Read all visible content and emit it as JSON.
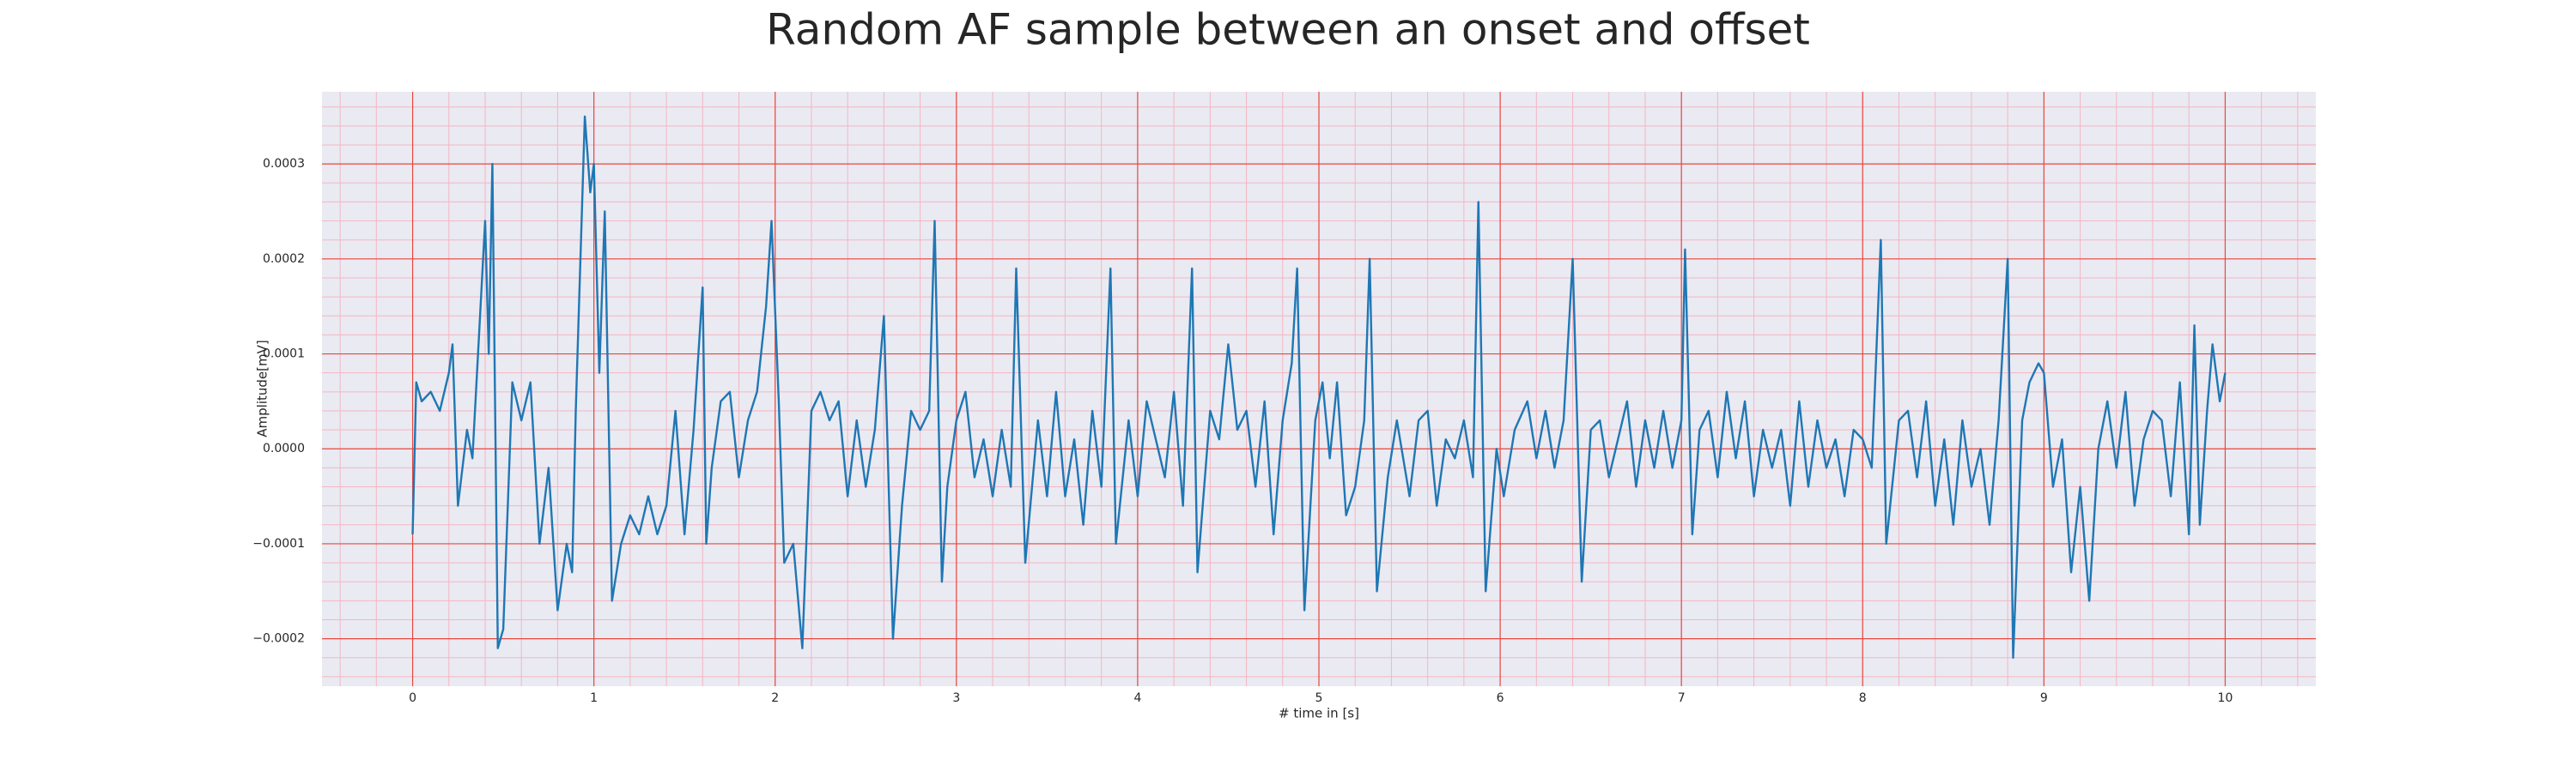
{
  "chart_data": {
    "type": "line",
    "title": "Random AF sample between an onset and offset",
    "x_label": "# time in [s]",
    "y_label": "Amplitude[mV]",
    "xlim": [
      -0.5,
      10.5
    ],
    "ylim": [
      -0.00025,
      0.000376
    ],
    "xticks": [
      0,
      1,
      2,
      3,
      4,
      5,
      6,
      7,
      8,
      9,
      10
    ],
    "yticks": [
      {
        "value": -0.0002,
        "label": "−0.0002"
      },
      {
        "value": -0.0001,
        "label": "−0.0001"
      },
      {
        "value": 0,
        "label": "0.0000"
      },
      0.0001,
      0.0002,
      0.0003
    ],
    "grid": true,
    "minor_grid": true,
    "x": [
      0,
      0.02,
      0.05,
      0.1,
      0.15,
      0.2,
      0.22,
      0.25,
      0.3,
      0.33,
      0.4,
      0.42,
      0.44,
      0.47,
      0.5,
      0.55,
      0.6,
      0.65,
      0.7,
      0.75,
      0.8,
      0.85,
      0.88,
      0.9,
      0.95,
      0.98,
      1.0,
      1.03,
      1.06,
      1.1,
      1.15,
      1.2,
      1.25,
      1.3,
      1.35,
      1.4,
      1.45,
      1.5,
      1.55,
      1.6,
      1.62,
      1.65,
      1.7,
      1.75,
      1.8,
      1.85,
      1.9,
      1.95,
      1.98,
      2.02,
      2.05,
      2.1,
      2.15,
      2.2,
      2.25,
      2.3,
      2.35,
      2.4,
      2.45,
      2.5,
      2.55,
      2.6,
      2.65,
      2.7,
      2.75,
      2.8,
      2.85,
      2.88,
      2.92,
      2.95,
      3.0,
      3.05,
      3.1,
      3.15,
      3.2,
      3.25,
      3.3,
      3.33,
      3.38,
      3.45,
      3.5,
      3.55,
      3.6,
      3.65,
      3.7,
      3.75,
      3.8,
      3.85,
      3.88,
      3.95,
      4.0,
      4.05,
      4.1,
      4.15,
      4.2,
      4.25,
      4.3,
      4.33,
      4.4,
      4.45,
      4.5,
      4.55,
      4.6,
      4.65,
      4.7,
      4.75,
      4.8,
      4.85,
      4.88,
      4.92,
      4.98,
      5.02,
      5.06,
      5.1,
      5.15,
      5.2,
      5.25,
      5.28,
      5.32,
      5.38,
      5.43,
      5.5,
      5.55,
      5.6,
      5.65,
      5.7,
      5.75,
      5.8,
      5.85,
      5.88,
      5.92,
      5.98,
      6.02,
      6.08,
      6.15,
      6.2,
      6.25,
      6.3,
      6.35,
      6.4,
      6.45,
      6.5,
      6.55,
      6.6,
      6.65,
      6.7,
      6.75,
      6.8,
      6.85,
      6.9,
      6.95,
      7.0,
      7.02,
      7.06,
      7.1,
      7.15,
      7.2,
      7.25,
      7.3,
      7.35,
      7.4,
      7.45,
      7.5,
      7.55,
      7.6,
      7.65,
      7.7,
      7.75,
      7.8,
      7.85,
      7.9,
      7.95,
      8.0,
      8.05,
      8.1,
      8.13,
      8.2,
      8.25,
      8.3,
      8.35,
      8.4,
      8.45,
      8.5,
      8.55,
      8.6,
      8.65,
      8.7,
      8.75,
      8.8,
      8.83,
      8.88,
      8.92,
      8.97,
      9.0,
      9.05,
      9.1,
      9.15,
      9.2,
      9.25,
      9.3,
      9.35,
      9.4,
      9.45,
      9.5,
      9.55,
      9.6,
      9.65,
      9.7,
      9.75,
      9.8,
      9.83,
      9.86,
      9.9,
      9.93,
      9.97,
      10.0
    ],
    "series": [
      {
        "color": "#1f77b4",
        "values": [
          -9e-05,
          7e-05,
          5e-05,
          6e-05,
          4e-05,
          8e-05,
          0.00011,
          -6e-05,
          2e-05,
          -1e-05,
          0.00024,
          0.0001,
          0.0003,
          -0.00021,
          -0.00019,
          7e-05,
          3e-05,
          7e-05,
          -0.0001,
          -2e-05,
          -0.00017,
          -0.0001,
          -0.00013,
          4e-05,
          0.00035,
          0.00027,
          0.0003,
          8e-05,
          0.00025,
          -0.00016,
          -0.0001,
          -7e-05,
          -9e-05,
          -5e-05,
          -9e-05,
          -6e-05,
          4e-05,
          -9e-05,
          2e-05,
          0.00017,
          -0.0001,
          -2e-05,
          5e-05,
          6e-05,
          -3e-05,
          3e-05,
          6e-05,
          0.00015,
          0.00024,
          5e-05,
          -0.00012,
          -0.0001,
          -0.00021,
          4e-05,
          6e-05,
          3e-05,
          5e-05,
          -5e-05,
          3e-05,
          -4e-05,
          2e-05,
          0.00014,
          -0.0002,
          -6e-05,
          4e-05,
          2e-05,
          4e-05,
          0.00024,
          -0.00014,
          -4e-05,
          3e-05,
          6e-05,
          -3e-05,
          1e-05,
          -5e-05,
          2e-05,
          -4e-05,
          0.00019,
          -0.00012,
          3e-05,
          -5e-05,
          6e-05,
          -5e-05,
          1e-05,
          -8e-05,
          4e-05,
          -4e-05,
          0.00019,
          -0.0001,
          3e-05,
          -5e-05,
          5e-05,
          1e-05,
          -3e-05,
          6e-05,
          -6e-05,
          0.00019,
          -0.00013,
          4e-05,
          1e-05,
          0.00011,
          2e-05,
          4e-05,
          -4e-05,
          5e-05,
          -9e-05,
          3e-05,
          9e-05,
          0.00019,
          -0.00017,
          3e-05,
          7e-05,
          -1e-05,
          7e-05,
          -7e-05,
          -4e-05,
          3e-05,
          0.0002,
          -0.00015,
          -3e-05,
          3e-05,
          -5e-05,
          3e-05,
          4e-05,
          -6e-05,
          1e-05,
          -1e-05,
          3e-05,
          -3e-05,
          0.00026,
          -0.00015,
          0,
          -5e-05,
          2e-05,
          5e-05,
          -1e-05,
          4e-05,
          -2e-05,
          3e-05,
          0.0002,
          -0.00014,
          2e-05,
          3e-05,
          -3e-05,
          1e-05,
          5e-05,
          -4e-05,
          3e-05,
          -2e-05,
          4e-05,
          -2e-05,
          3e-05,
          0.00021,
          -9e-05,
          2e-05,
          4e-05,
          -3e-05,
          6e-05,
          -1e-05,
          5e-05,
          -5e-05,
          2e-05,
          -2e-05,
          2e-05,
          -6e-05,
          5e-05,
          -4e-05,
          3e-05,
          -2e-05,
          1e-05,
          -5e-05,
          2e-05,
          1e-05,
          -2e-05,
          0.00022,
          -0.0001,
          3e-05,
          4e-05,
          -3e-05,
          5e-05,
          -6e-05,
          1e-05,
          -8e-05,
          3e-05,
          -4e-05,
          0,
          -8e-05,
          3e-05,
          0.0002,
          -0.00022,
          3e-05,
          7e-05,
          9e-05,
          8e-05,
          -4e-05,
          1e-05,
          -0.00013,
          -4e-05,
          -0.00016,
          0,
          5e-05,
          -2e-05,
          6e-05,
          -6e-05,
          1e-05,
          4e-05,
          3e-05,
          -5e-05,
          7e-05,
          -9e-05,
          0.00013,
          -8e-05,
          4e-05,
          0.00011,
          5e-05,
          8e-05
        ]
      }
    ]
  }
}
